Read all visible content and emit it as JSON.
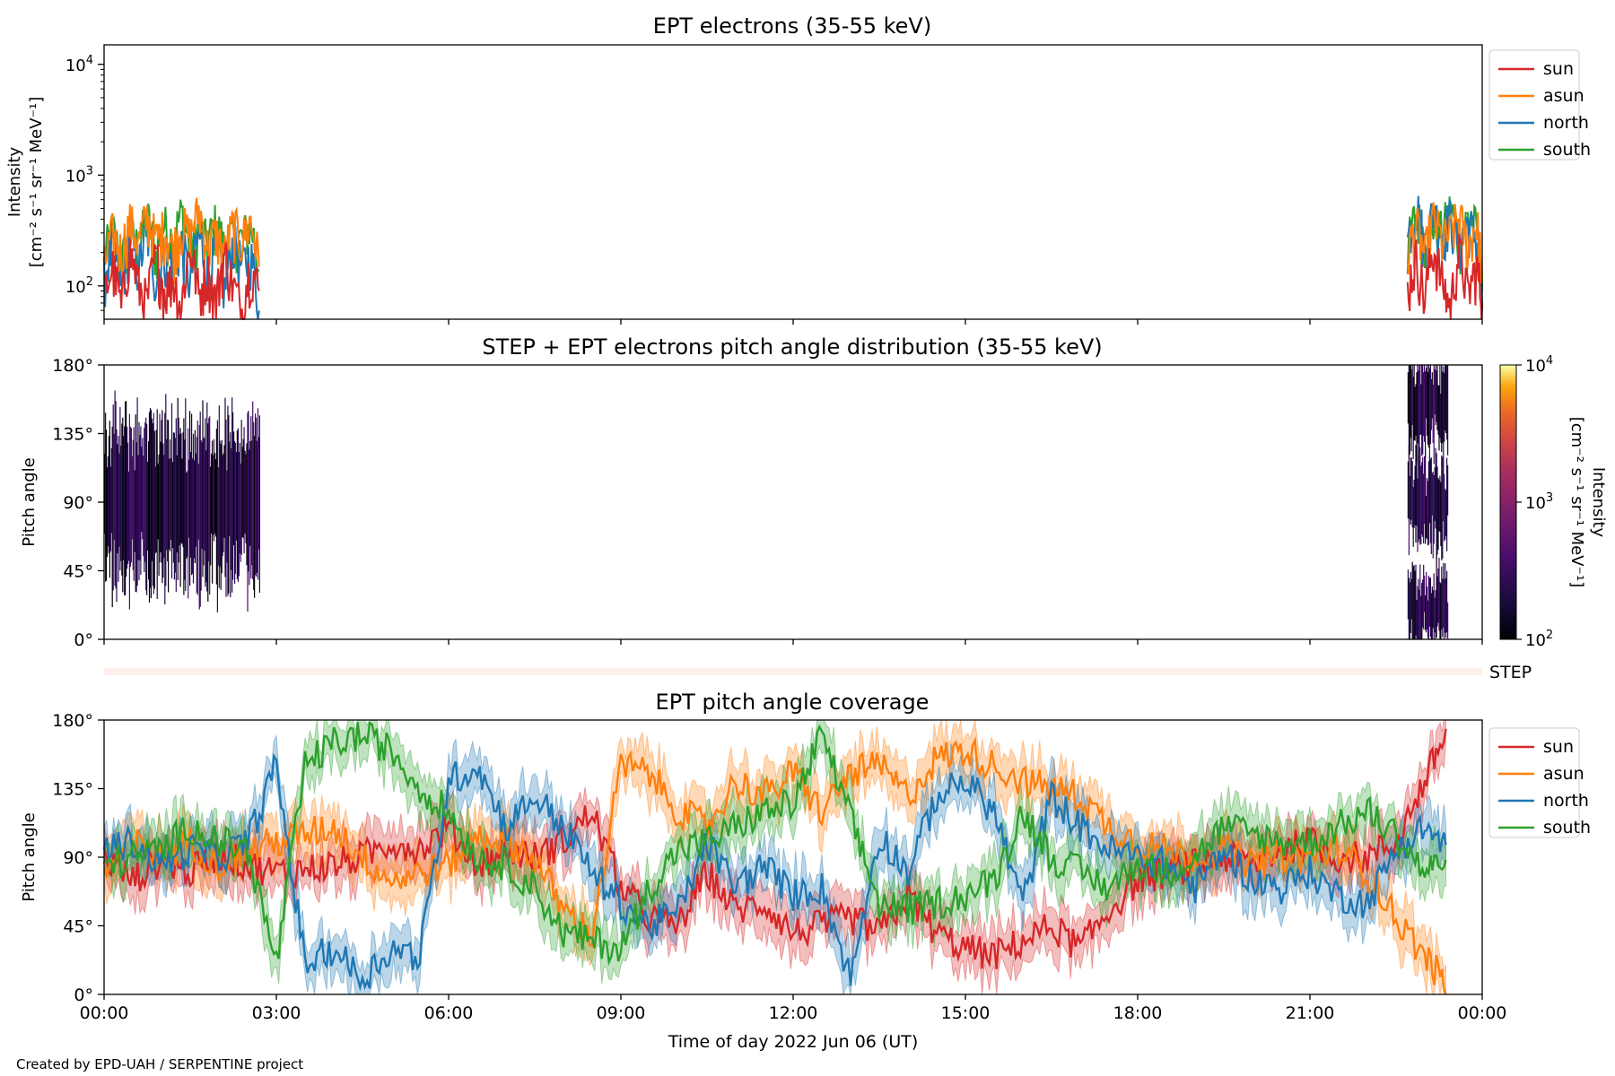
{
  "footer": {
    "credit": "Created by EPD-UAH / SERPENTINE project"
  },
  "chart_data": [
    {
      "type": "line",
      "title": "EPT electrons (35-55 keV)",
      "ylabel_lines": [
        "Intensity",
        "[cm⁻² s⁻¹ sr⁻¹ MeV⁻¹]"
      ],
      "yscale": "log",
      "ylim": [
        50,
        15000
      ],
      "yticks": [
        {
          "value": 100,
          "base": "10",
          "exp": "2"
        },
        {
          "value": 1000,
          "base": "10",
          "exp": "3"
        },
        {
          "value": 10000,
          "base": "10",
          "exp": "4"
        }
      ],
      "x_range_hours": [
        0,
        24
      ],
      "legend": "outside-right",
      "series": [
        {
          "name": "sun",
          "color": "#d62728",
          "segments": [
            {
              "x": [
                0.0,
                0.15,
                0.3,
                0.45,
                0.6,
                0.75,
                0.9,
                1.05,
                1.2,
                1.35,
                1.5,
                1.65,
                1.8,
                1.95,
                2.1,
                2.25,
                2.4,
                2.55,
                2.7
              ],
              "y": [
                80,
                150,
                60,
                200,
                100,
                70,
                180,
                90,
                120,
                60,
                220,
                80,
                140,
                70,
                190,
                100,
                60,
                150,
                90
              ]
            },
            {
              "x": [
                22.7,
                22.85,
                23.0,
                23.15,
                23.3,
                23.45,
                23.6,
                23.75,
                23.9,
                24.0
              ],
              "y": [
                90,
                180,
                70,
                220,
                110,
                60,
                200,
                80,
                150,
                70
              ]
            }
          ]
        },
        {
          "name": "asun",
          "color": "#ff7f0e",
          "segments": [
            {
              "x": [
                0.0,
                0.15,
                0.3,
                0.45,
                0.6,
                0.75,
                0.9,
                1.05,
                1.2,
                1.35,
                1.5,
                1.65,
                1.8,
                1.95,
                2.1,
                2.25,
                2.4,
                2.55,
                2.7
              ],
              "y": [
                150,
                300,
                200,
                380,
                250,
                420,
                260,
                330,
                210,
                360,
                280,
                480,
                230,
                300,
                200,
                350,
                260,
                380,
                150
              ]
            },
            {
              "x": [
                22.7,
                22.85,
                23.0,
                23.15,
                23.3,
                23.45,
                23.6,
                23.75,
                23.9,
                24.0
              ],
              "y": [
                200,
                350,
                180,
                400,
                250,
                300,
                420,
                220,
                380,
                120
              ]
            }
          ]
        },
        {
          "name": "north",
          "color": "#1f77b4",
          "segments": [
            {
              "x": [
                0.0,
                0.15,
                0.3,
                0.45,
                0.6,
                0.75,
                0.9,
                1.05,
                1.2,
                1.35,
                1.5,
                1.65,
                1.8,
                1.95,
                2.1,
                2.25,
                2.4,
                2.55,
                2.7
              ],
              "y": [
                120,
                220,
                90,
                260,
                140,
                300,
                110,
                200,
                160,
                240,
                100,
                280,
                130,
                210,
                90,
                250,
                150,
                190,
                60
              ]
            },
            {
              "x": [
                22.7,
                22.85,
                23.0,
                23.15,
                23.3,
                23.45,
                23.6,
                23.75,
                23.9,
                24.0
              ],
              "y": [
                250,
                560,
                200,
                480,
                300,
                420,
                230,
                380,
                260,
                60
              ]
            }
          ]
        },
        {
          "name": "south",
          "color": "#2ca02c",
          "segments": [
            {
              "x": [
                0.0,
                0.15,
                0.3,
                0.45,
                0.6,
                0.75,
                0.9,
                1.05,
                1.2,
                1.35,
                1.5,
                1.65,
                1.8,
                1.95,
                2.1,
                2.25,
                2.4,
                2.55,
                2.7
              ],
              "y": [
                180,
                320,
                150,
                300,
                220,
                420,
                190,
                360,
                250,
                460,
                200,
                330,
                240,
                380,
                210,
                300,
                260,
                360,
                140
              ]
            },
            {
              "x": [
                22.7,
                22.85,
                23.0,
                23.15,
                23.3,
                23.45,
                23.6,
                23.75,
                23.9,
                24.0
              ],
              "y": [
                220,
                450,
                260,
                380,
                300,
                500,
                240,
                420,
                330,
                90
              ]
            }
          ]
        }
      ]
    },
    {
      "type": "heatmap",
      "title": "STEP + EPT electrons pitch angle distribution (35-55 keV)",
      "ylabel": "Pitch angle",
      "ylim": [
        0,
        180
      ],
      "yticks": [
        "0°",
        "45°",
        "90°",
        "135°",
        "180°"
      ],
      "x_range_hours": [
        0,
        24
      ],
      "colorbar": {
        "label_lines": [
          "Intensity",
          "[cm⁻² s⁻¹ sr⁻¹ MeV⁻¹]"
        ],
        "scale": "log",
        "range": [
          100,
          10000
        ],
        "ticks": [
          {
            "value": 100,
            "base": "10",
            "exp": "2"
          },
          {
            "value": 1000,
            "base": "10",
            "exp": "3"
          },
          {
            "value": 10000,
            "base": "10",
            "exp": "4"
          }
        ],
        "colormap": "inferno"
      },
      "bands": [
        {
          "x_range": [
            0.0,
            2.7
          ],
          "center_deg": 90,
          "halfwidth_deg": 45
        },
        {
          "x_range": [
            22.7,
            23.4
          ],
          "center_deg": 90,
          "halfwidth_deg": 25
        },
        {
          "x_range": [
            22.7,
            23.4
          ],
          "center_deg": 155,
          "halfwidth_deg": 25
        },
        {
          "x_range": [
            22.7,
            23.4
          ],
          "center_deg": 20,
          "halfwidth_deg": 20
        }
      ],
      "step_strip_label": "STEP"
    },
    {
      "type": "line",
      "title": "EPT pitch angle coverage",
      "ylabel": "Pitch angle",
      "xlabel": "Time of day 2022 Jun 06 (UT)",
      "ylim": [
        0,
        180
      ],
      "yticks": [
        "0°",
        "45°",
        "90°",
        "135°",
        "180°"
      ],
      "x_range_hours": [
        0,
        24
      ],
      "xticks": [
        "00:00",
        "03:00",
        "06:00",
        "09:00",
        "12:00",
        "15:00",
        "18:00",
        "21:00",
        "00:00"
      ],
      "legend": "outside-right",
      "x": [
        0,
        0.5,
        1,
        1.5,
        2,
        2.5,
        3,
        3.5,
        4,
        4.5,
        5,
        5.5,
        6,
        6.5,
        7,
        7.5,
        8,
        8.5,
        9,
        9.5,
        10,
        10.5,
        11,
        11.5,
        12,
        12.5,
        13,
        13.5,
        14,
        14.5,
        15,
        15.5,
        16,
        16.5,
        17,
        17.5,
        18,
        18.5,
        19,
        19.5,
        20,
        20.5,
        21,
        21.5,
        22,
        22.5,
        23,
        23.4
      ],
      "series": [
        {
          "name": "sun",
          "color": "#d62728",
          "values": [
            90,
            75,
            88,
            80,
            92,
            85,
            80,
            82,
            85,
            90,
            100,
            95,
            110,
            85,
            95,
            90,
            100,
            120,
            70,
            50,
            45,
            80,
            55,
            60,
            40,
            45,
            50,
            40,
            65,
            40,
            30,
            25,
            35,
            45,
            30,
            55,
            75,
            80,
            85,
            90,
            85,
            95,
            100,
            90,
            90,
            100,
            140,
            175
          ]
        },
        {
          "name": "asun",
          "color": "#ff7f0e",
          "values": [
            80,
            100,
            90,
            100,
            85,
            95,
            100,
            105,
            110,
            90,
            75,
            80,
            85,
            105,
            100,
            90,
            55,
            40,
            150,
            145,
            120,
            110,
            140,
            130,
            145,
            120,
            145,
            150,
            130,
            155,
            160,
            150,
            140,
            135,
            130,
            110,
            100,
            95,
            90,
            95,
            85,
            90,
            90,
            95,
            80,
            50,
            25,
            5
          ]
        },
        {
          "name": "north",
          "color": "#1f77b4",
          "values": [
            95,
            100,
            85,
            95,
            90,
            100,
            150,
            20,
            30,
            10,
            30,
            25,
            140,
            150,
            110,
            130,
            110,
            80,
            60,
            45,
            55,
            100,
            70,
            85,
            65,
            70,
            10,
            105,
            80,
            130,
            140,
            120,
            60,
            130,
            110,
            95,
            90,
            85,
            70,
            95,
            75,
            70,
            80,
            65,
            60,
            95,
            110,
            95
          ]
        },
        {
          "name": "south",
          "color": "#2ca02c",
          "values": [
            85,
            90,
            95,
            110,
            100,
            95,
            20,
            150,
            165,
            170,
            160,
            135,
            120,
            90,
            85,
            70,
            40,
            35,
            30,
            70,
            95,
            100,
            110,
            120,
            125,
            170,
            115,
            60,
            55,
            60,
            65,
            75,
            120,
            90,
            80,
            70,
            85,
            80,
            90,
            110,
            105,
            100,
            100,
            110,
            120,
            105,
            80,
            90
          ]
        }
      ]
    }
  ]
}
